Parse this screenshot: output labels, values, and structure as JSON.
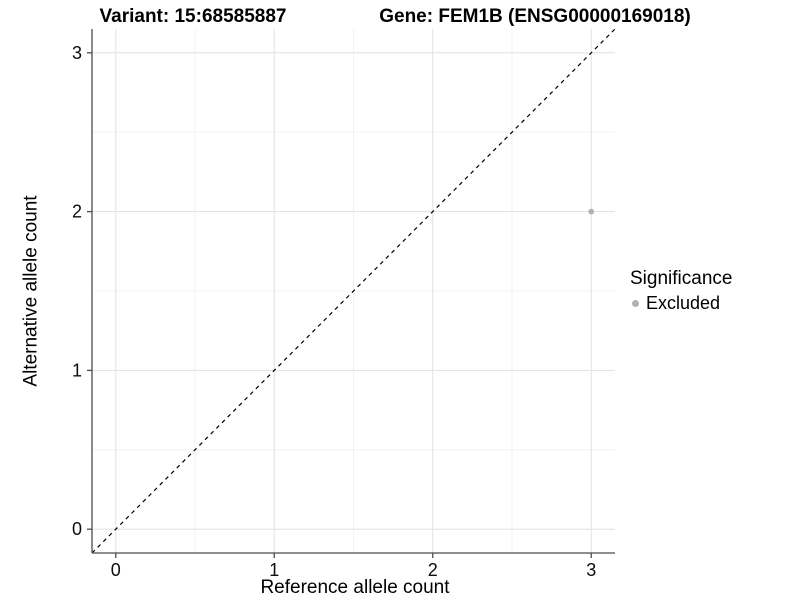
{
  "chart_data": {
    "type": "scatter",
    "titles": {
      "left": "Variant: 15:68585887",
      "right": "Gene: FEM1B (ENSG00000169018)"
    },
    "xlabel": "Reference allele count",
    "ylabel": "Alternative allele count",
    "xlim": [
      -0.15,
      3.15
    ],
    "ylim": [
      -0.15,
      3.15
    ],
    "x_ticks": [
      0,
      1,
      2,
      3
    ],
    "y_ticks": [
      0,
      1,
      2,
      3
    ],
    "x_minor_ticks": [
      0.5,
      1.5,
      2.5
    ],
    "y_minor_ticks": [
      0.5,
      1.5,
      2.5
    ],
    "grid": "major+minor",
    "series": [
      {
        "name": "Excluded",
        "color": "#b1b1b1",
        "marker": "circle",
        "points": [
          {
            "x": 3,
            "y": 2
          }
        ]
      }
    ],
    "reference_line": {
      "style": "dashed",
      "color": "#000000",
      "from": [
        -0.15,
        -0.15
      ],
      "to": [
        3.15,
        3.15
      ]
    },
    "legend": {
      "title": "Significance",
      "position": "right",
      "items": [
        {
          "label": "Excluded",
          "color": "#b1b1b1",
          "marker": "circle"
        }
      ]
    }
  },
  "colors": {
    "background": "#ffffff",
    "grid_major": "#e4e4e4",
    "grid_minor": "#f0f0f0",
    "axis": "#4c4c4c",
    "text": "#0d0d0d"
  }
}
